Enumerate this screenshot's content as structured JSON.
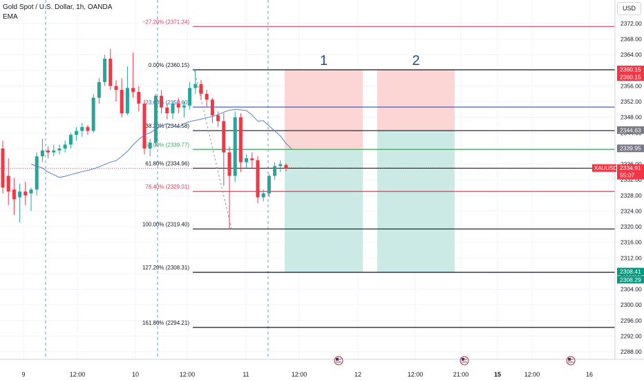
{
  "header": {
    "title": "Gold Spot / U.S. Dollar, 1h, OANDA",
    "indicator": "EMA"
  },
  "currency": "USD",
  "colors": {
    "up": "#26a69a",
    "down": "#f23645",
    "ema": "#5b7fd1",
    "grid": "#f0f3fa",
    "session": "#5b9bd5",
    "long_target": "#cbe9e5",
    "long_stop": "#fbd6d5"
  },
  "chart_data": {
    "type": "candlestick",
    "symbol": "XAUUSD",
    "timeframe": "1h",
    "ylim": [
      2286,
      2374
    ],
    "y_ticks": [
      2372,
      2368,
      2364,
      2360,
      2356,
      2352,
      2348,
      2344,
      2340,
      2336,
      2332,
      2328,
      2324,
      2320,
      2316,
      2312,
      2308,
      2304,
      2300,
      2296,
      2292,
      2288
    ],
    "y_tick_labels": [
      "2372.00",
      "2368.00",
      "2364.00",
      "2360.00",
      "2356.00",
      "2352.00",
      "2348.00",
      "2344.00",
      "2340.00",
      "2336.00",
      "2332.00",
      "2328.00",
      "2324.00",
      "2320.00",
      "2316.00",
      "2312.00",
      "2308.00",
      "2304.00",
      "2300.00",
      "2296.00",
      "2292.00",
      "2288.00"
    ],
    "x_ticks": [
      {
        "label": "9",
        "bold": false
      },
      {
        "label": "12:00",
        "bold": false
      },
      {
        "label": "10",
        "bold": false
      },
      {
        "label": "12:00",
        "bold": false
      },
      {
        "label": "11",
        "bold": false
      },
      {
        "label": "12:00",
        "bold": false
      },
      {
        "label": "12",
        "bold": false
      },
      {
        "label": "12:00",
        "bold": false
      },
      {
        "label": "21:00",
        "bold": false
      },
      {
        "label": "15",
        "bold": true
      },
      {
        "label": "12:00",
        "bold": false
      },
      {
        "label": "16",
        "bold": false
      }
    ],
    "candles": [
      {
        "o": 2340.0,
        "h": 2342.0,
        "l": 2328.5,
        "c": 2330.0
      },
      {
        "o": 2333.0,
        "h": 2337.5,
        "l": 2325.5,
        "c": 2329.0
      },
      {
        "o": 2329.5,
        "h": 2332.5,
        "l": 2323.0,
        "c": 2327.0
      },
      {
        "o": 2327.5,
        "h": 2331.0,
        "l": 2321.0,
        "c": 2329.0
      },
      {
        "o": 2329.0,
        "h": 2331.5,
        "l": 2325.5,
        "c": 2328.0
      },
      {
        "o": 2328.5,
        "h": 2330.0,
        "l": 2324.0,
        "c": 2329.5
      },
      {
        "o": 2329.5,
        "h": 2339.0,
        "l": 2328.0,
        "c": 2338.0
      },
      {
        "o": 2338.0,
        "h": 2342.5,
        "l": 2336.5,
        "c": 2339.5
      },
      {
        "o": 2339.5,
        "h": 2340.5,
        "l": 2337.5,
        "c": 2339.0
      },
      {
        "o": 2339.0,
        "h": 2341.0,
        "l": 2338.0,
        "c": 2339.5
      },
      {
        "o": 2339.5,
        "h": 2341.0,
        "l": 2338.5,
        "c": 2340.0
      },
      {
        "o": 2340.0,
        "h": 2342.0,
        "l": 2339.0,
        "c": 2341.0
      },
      {
        "o": 2341.0,
        "h": 2344.0,
        "l": 2340.0,
        "c": 2343.5
      },
      {
        "o": 2343.5,
        "h": 2345.5,
        "l": 2342.0,
        "c": 2344.5
      },
      {
        "o": 2344.5,
        "h": 2346.5,
        "l": 2343.0,
        "c": 2345.5
      },
      {
        "o": 2345.5,
        "h": 2346.0,
        "l": 2343.5,
        "c": 2344.5
      },
      {
        "o": 2344.5,
        "h": 2354.0,
        "l": 2344.0,
        "c": 2353.0
      },
      {
        "o": 2353.0,
        "h": 2358.0,
        "l": 2351.5,
        "c": 2357.0
      },
      {
        "o": 2357.0,
        "h": 2364.0,
        "l": 2356.0,
        "c": 2363.0
      },
      {
        "o": 2363.0,
        "h": 2365.5,
        "l": 2355.0,
        "c": 2356.0
      },
      {
        "o": 2356.0,
        "h": 2357.5,
        "l": 2352.0,
        "c": 2355.0
      },
      {
        "o": 2355.0,
        "h": 2358.0,
        "l": 2348.0,
        "c": 2349.0
      },
      {
        "o": 2349.0,
        "h": 2361.0,
        "l": 2348.5,
        "c": 2355.5
      },
      {
        "o": 2355.5,
        "h": 2364.5,
        "l": 2353.0,
        "c": 2354.5
      },
      {
        "o": 2354.5,
        "h": 2356.0,
        "l": 2349.5,
        "c": 2351.5
      },
      {
        "o": 2351.5,
        "h": 2352.5,
        "l": 2338.5,
        "c": 2340.0
      },
      {
        "o": 2340.0,
        "h": 2342.5,
        "l": 2338.0,
        "c": 2341.5
      },
      {
        "o": 2341.5,
        "h": 2354.0,
        "l": 2340.5,
        "c": 2353.5
      },
      {
        "o": 2353.5,
        "h": 2355.0,
        "l": 2349.0,
        "c": 2350.5
      },
      {
        "o": 2350.5,
        "h": 2351.5,
        "l": 2347.5,
        "c": 2349.0
      },
      {
        "o": 2349.0,
        "h": 2352.0,
        "l": 2347.5,
        "c": 2351.5
      },
      {
        "o": 2351.5,
        "h": 2353.0,
        "l": 2349.0,
        "c": 2350.5
      },
      {
        "o": 2350.5,
        "h": 2352.0,
        "l": 2348.0,
        "c": 2351.0
      },
      {
        "o": 2351.0,
        "h": 2357.0,
        "l": 2350.0,
        "c": 2355.5
      },
      {
        "o": 2355.5,
        "h": 2360.15,
        "l": 2354.0,
        "c": 2356.5
      },
      {
        "o": 2356.5,
        "h": 2357.5,
        "l": 2352.5,
        "c": 2354.0
      },
      {
        "o": 2354.0,
        "h": 2355.0,
        "l": 2350.5,
        "c": 2352.5
      },
      {
        "o": 2352.5,
        "h": 2353.0,
        "l": 2346.5,
        "c": 2348.5
      },
      {
        "o": 2348.5,
        "h": 2349.5,
        "l": 2345.5,
        "c": 2347.0
      },
      {
        "o": 2347.0,
        "h": 2349.0,
        "l": 2330.5,
        "c": 2339.0
      },
      {
        "o": 2339.0,
        "h": 2340.5,
        "l": 2319.4,
        "c": 2333.0
      },
      {
        "o": 2333.0,
        "h": 2349.5,
        "l": 2331.5,
        "c": 2348.0
      },
      {
        "o": 2348.0,
        "h": 2349.0,
        "l": 2334.0,
        "c": 2336.5
      },
      {
        "o": 2336.5,
        "h": 2338.5,
        "l": 2335.0,
        "c": 2337.5
      },
      {
        "o": 2337.5,
        "h": 2339.0,
        "l": 2335.0,
        "c": 2337.0
      },
      {
        "o": 2337.0,
        "h": 2338.0,
        "l": 2326.0,
        "c": 2327.5
      },
      {
        "o": 2327.5,
        "h": 2329.5,
        "l": 2326.5,
        "c": 2328.5
      },
      {
        "o": 2328.5,
        "h": 2333.5,
        "l": 2327.5,
        "c": 2333.0
      },
      {
        "o": 2333.0,
        "h": 2336.5,
        "l": 2332.0,
        "c": 2335.5
      },
      {
        "o": 2335.5,
        "h": 2337.0,
        "l": 2334.0,
        "c": 2336.0
      },
      {
        "o": 2335.8,
        "h": 2336.2,
        "l": 2334.2,
        "c": 2334.91
      }
    ],
    "ema": [
      2336.0,
      2335.5,
      2335.0,
      2334.0,
      2333.3,
      2332.6,
      2332.9,
      2333.3,
      2333.7,
      2334.1,
      2334.4,
      2334.8,
      2335.3,
      2335.9,
      2336.5,
      2336.9,
      2338.0,
      2339.3,
      2340.9,
      2342.3,
      2343.5,
      2344.0,
      2344.9,
      2345.8,
      2346.4,
      2345.8,
      2345.4,
      2346.4,
      2346.9,
      2347.2,
      2347.5,
      2347.9,
      2348.2,
      2348.7,
      2349.3,
      2349.8,
      2350.0,
      2349.9,
      2349.7,
      2348.6,
      2347.0,
      2347.1,
      2345.8,
      2344.5,
      2343.2,
      2341.3,
      2339.9
    ],
    "fib_levels": [
      {
        "label": "−27.20% (2371.24)",
        "value": 2371.24,
        "color": "#e03a60"
      },
      {
        "label": "0.00% (2360.15)",
        "value": 2360.15,
        "color": "#131722"
      },
      {
        "label": "23.60% (2350.60)",
        "value": 2350.6,
        "color": "#3f62c2"
      },
      {
        "label": "38.20% (2344.58)",
        "value": 2344.58,
        "color": "#131722"
      },
      {
        "label": "50.00% (2339.77)",
        "value": 2339.77,
        "color": "#3fa65f"
      },
      {
        "label": "61.80% (2334.96)",
        "value": 2334.96,
        "color": "#131722"
      },
      {
        "label": "76.40% (2329.01)",
        "value": 2329.01,
        "color": "#e03a50"
      },
      {
        "label": "100.00% (2319.40)",
        "value": 2319.4,
        "color": "#131722"
      },
      {
        "label": "127.20% (2308.31)",
        "value": 2308.31,
        "color": "#131722"
      },
      {
        "label": "161.80% (2294.21)",
        "value": 2294.21,
        "color": "#131722"
      }
    ],
    "positions": [
      {
        "label": "1",
        "stop": 2360.15,
        "entry": 2339.77,
        "target": 2308.31
      },
      {
        "label": "2",
        "stop": 2360.15,
        "entry": 2344.58,
        "target": 2308.31
      }
    ],
    "price_badges": [
      {
        "text": "2360.15",
        "value": 2360.15,
        "color": "#f23645",
        "stack": 0
      },
      {
        "text": "2360.15",
        "value": 2360.15,
        "color": "#f23645",
        "stack": 1
      },
      {
        "text": "2344.63",
        "value": 2344.63,
        "color": "#787b86",
        "stack": 0
      },
      {
        "text": "2339.95",
        "value": 2339.95,
        "color": "#787b86",
        "stack": 0
      },
      {
        "text": "2308.41",
        "value": 2308.41,
        "color": "#089981",
        "stack": 0
      },
      {
        "text": "2308.29",
        "value": 2308.29,
        "color": "#089981",
        "stack": 1
      }
    ],
    "last_price": {
      "symbol": "XAUUSD",
      "price": "2334.91",
      "countdown": "55:07",
      "value": 2334.91
    },
    "events": [
      "us-flag-icon",
      "us-flag-icon",
      "us-flag-icon"
    ]
  }
}
